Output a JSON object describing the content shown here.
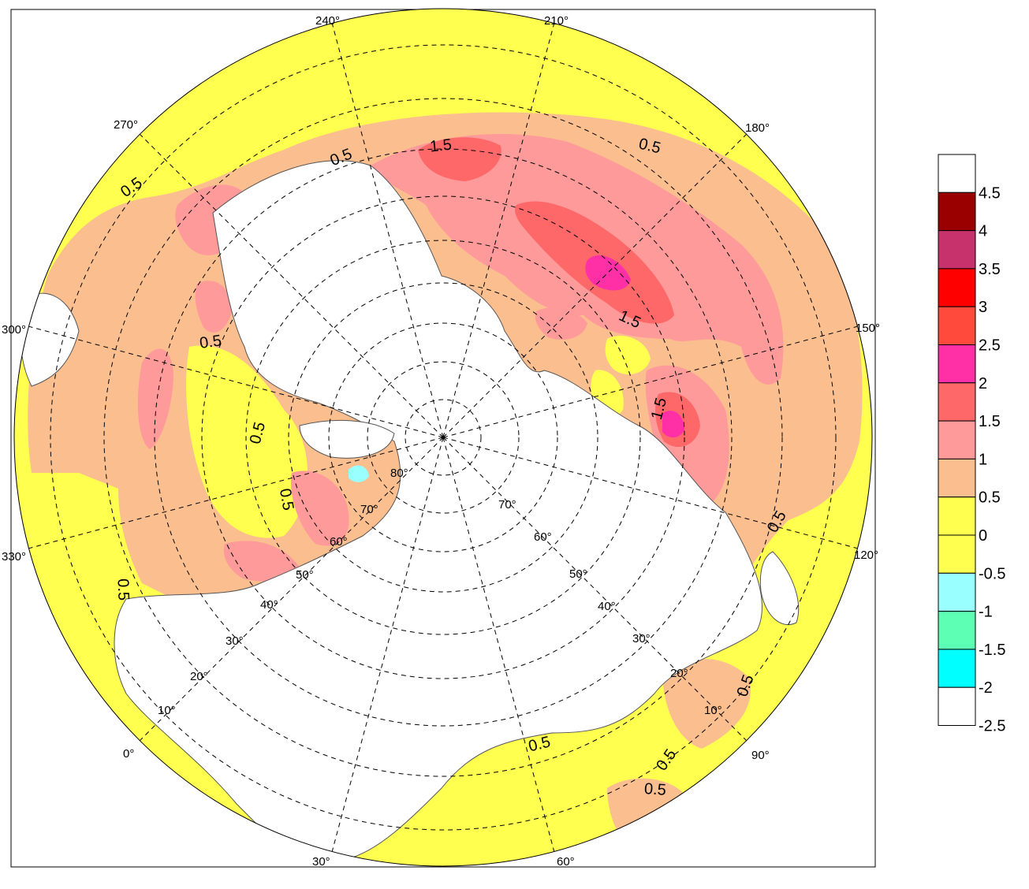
{
  "map": {
    "projection": "polar-stereographic-north",
    "lon_labels": [
      {
        "text": "240°",
        "lon": 240
      },
      {
        "text": "210°",
        "lon": 210
      },
      {
        "text": "180°",
        "lon": 180
      },
      {
        "text": "150°",
        "lon": 150
      },
      {
        "text": "120°",
        "lon": 120
      },
      {
        "text": "90°",
        "lon": 90
      },
      {
        "text": "60°",
        "lon": 60
      },
      {
        "text": "30°",
        "lon": 30
      },
      {
        "text": "0°",
        "lon": 0
      },
      {
        "text": "330°",
        "lon": 330
      },
      {
        "text": "300°",
        "lon": 300
      },
      {
        "text": "270°",
        "lon": 270
      }
    ],
    "lat_labels_left": [
      "80°",
      "70°",
      "60°",
      "50°",
      "40°",
      "30°",
      "20°",
      "10°"
    ],
    "lat_labels_right": [
      "70°",
      "60°",
      "50°",
      "40°",
      "30°",
      "20°",
      "10°"
    ],
    "contour_labels": [
      "0.5",
      "1.5",
      "0.5",
      "0.5",
      "1.5",
      "0.5",
      "0.5",
      "0.5",
      "0.5",
      "1.5",
      "0.5",
      "0.5",
      "0.5",
      "0.5",
      "0.5"
    ]
  },
  "legend": {
    "colors": [
      "#ffffff",
      "#9a0000",
      "#c8326c",
      "#ff0000",
      "#ff4a3c",
      "#ff2fa6",
      "#ff6868",
      "#ff9a9a",
      "#fbbf8f",
      "#ffff50",
      "#ffff50",
      "#9affff",
      "#5cffb4",
      "#00ffff",
      "#ffffff"
    ],
    "labels": [
      "4.5",
      "4",
      "3.5",
      "3",
      "2.5",
      "2",
      "1.5",
      "1",
      "0.5",
      "0",
      "-0.5",
      "-1",
      "-1.5",
      "-2",
      "-2.5"
    ]
  }
}
